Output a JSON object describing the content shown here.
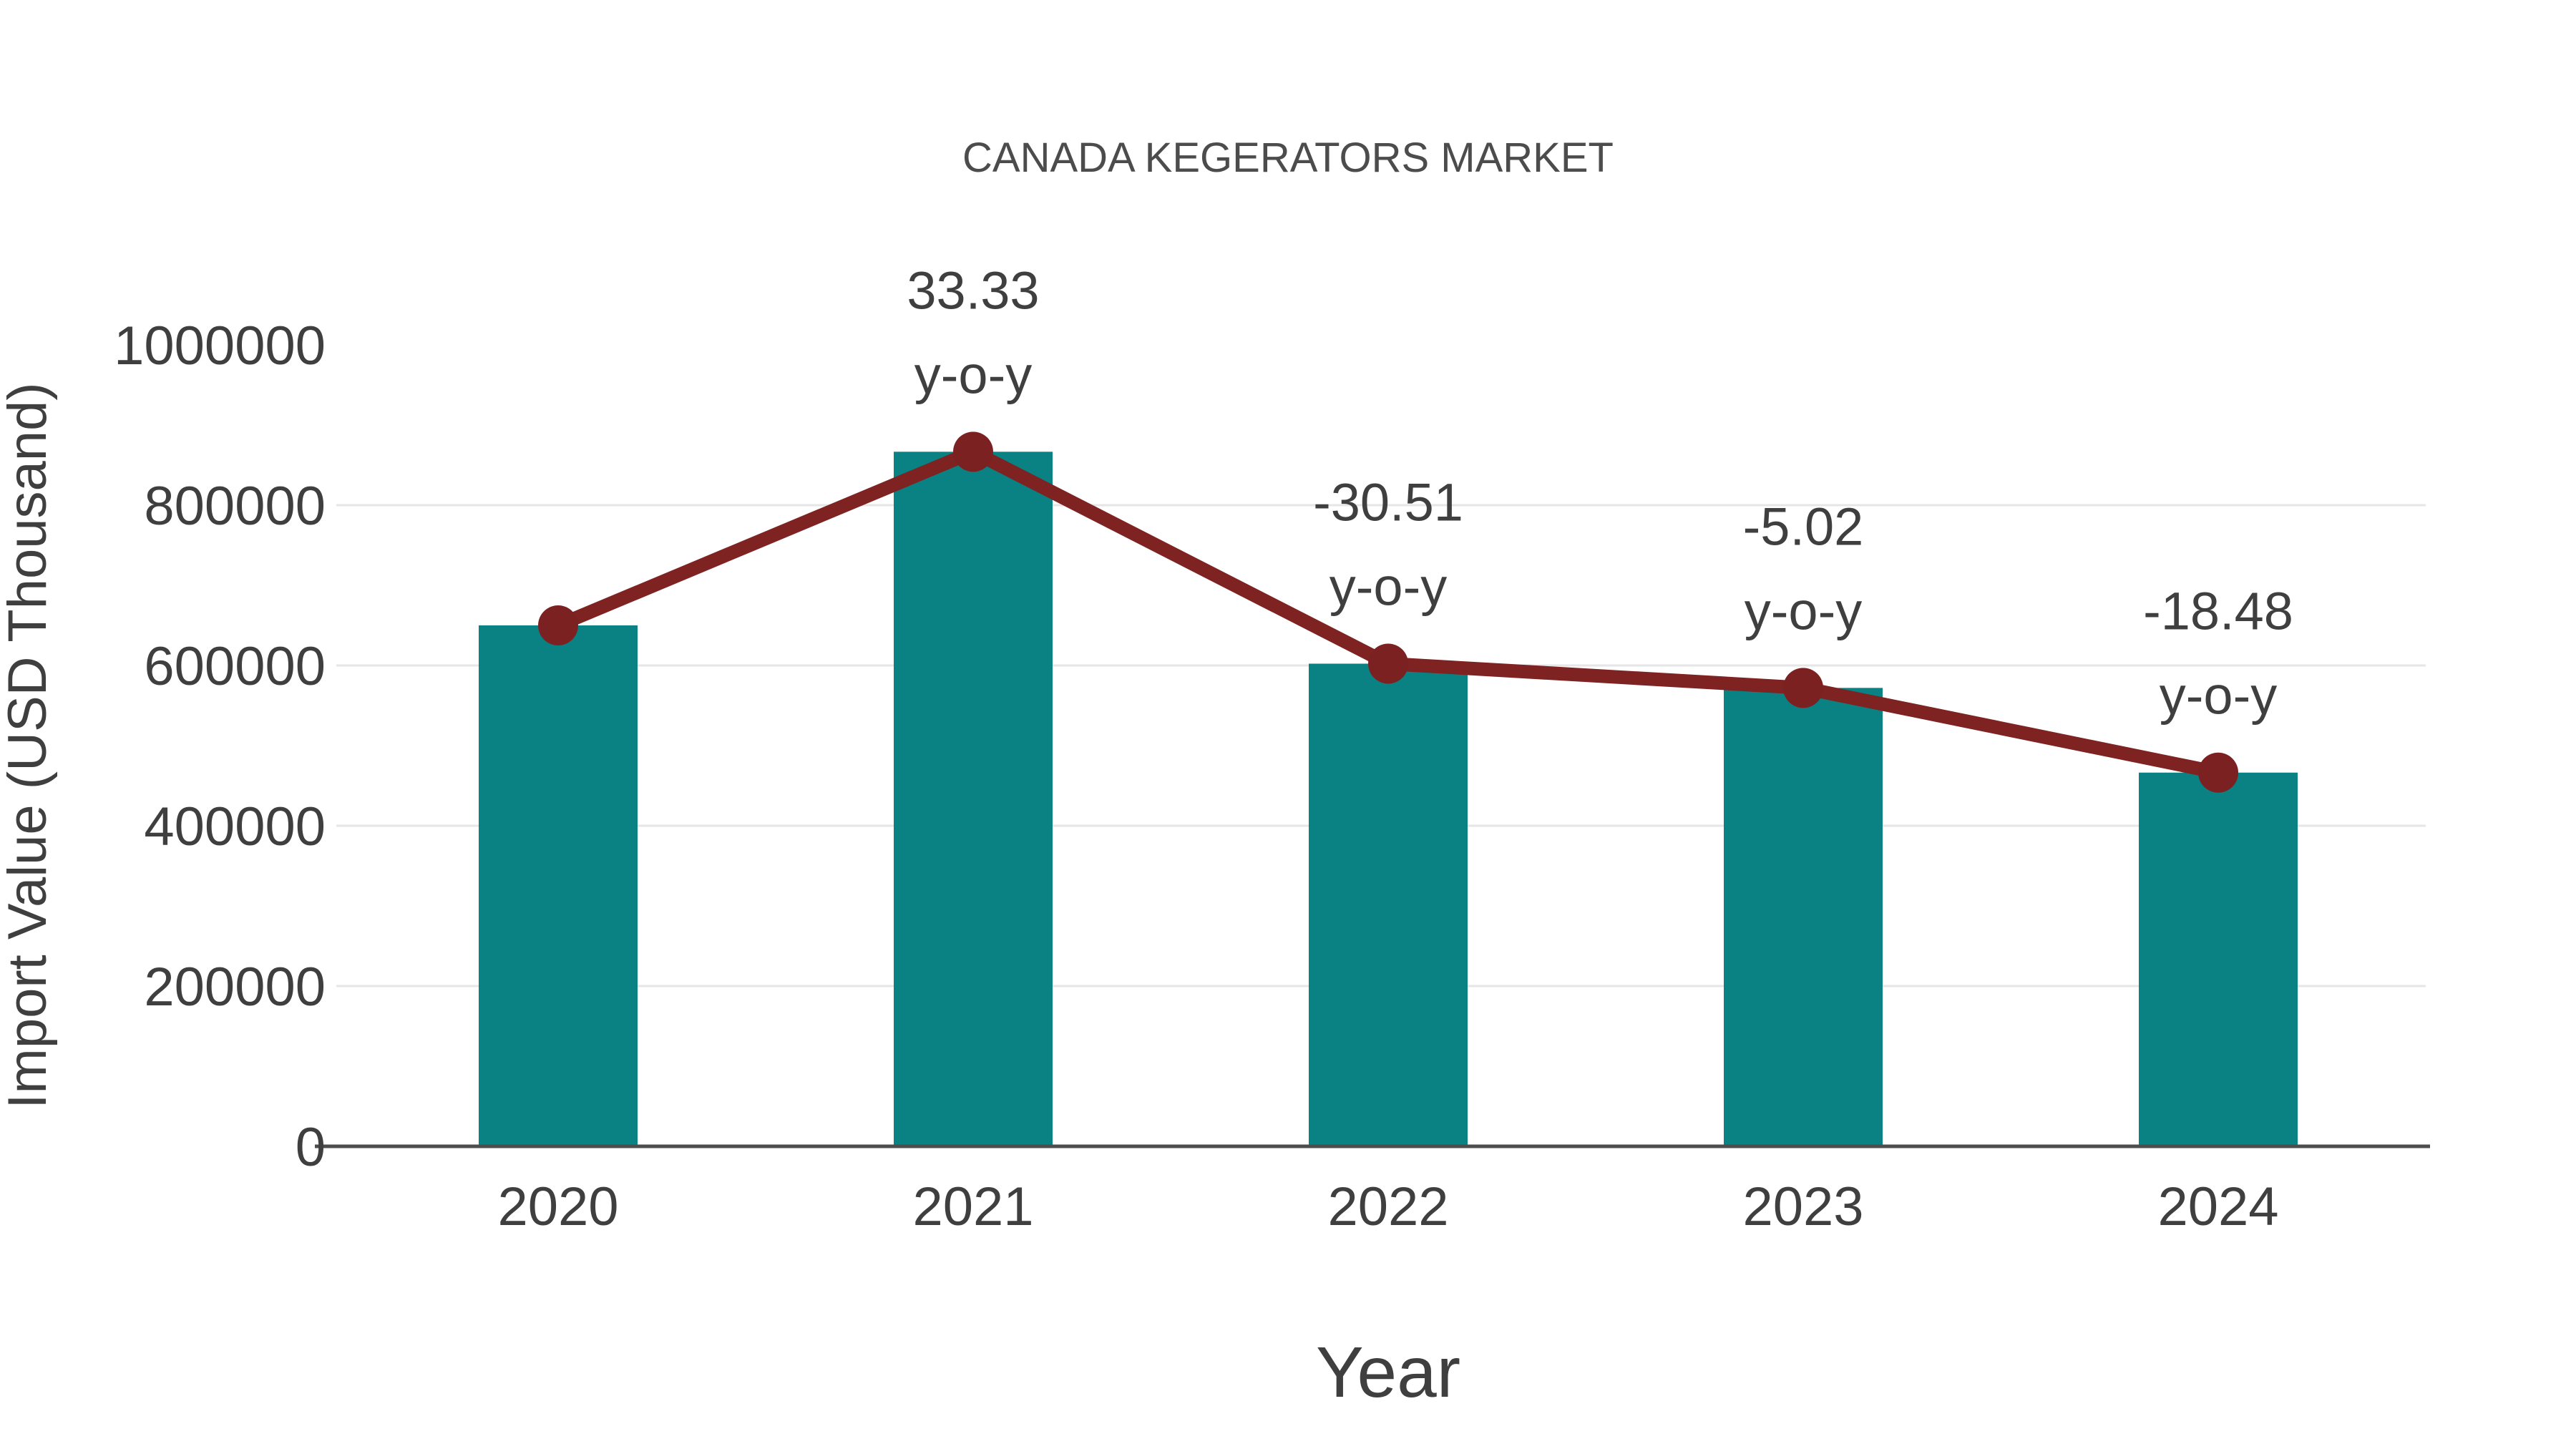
{
  "chart_data": {
    "type": "bar",
    "overlay": "line",
    "title": "CANADA KEGERATORS MARKET",
    "xlabel": "Year",
    "ylabel": "Import Value (USD Thousand)",
    "categories": [
      "2020",
      "2021",
      "2022",
      "2023",
      "2024"
    ],
    "series": [
      {
        "name": "Import Value (USD Thousand)",
        "type": "bar",
        "values": [
          650000,
          866667,
          602247,
          572014,
          466306
        ]
      },
      {
        "name": "y-o-y trend",
        "type": "line",
        "values": [
          650000,
          866667,
          602247,
          572014,
          466306
        ],
        "annotations": [
          {
            "category": "2021",
            "line1": "33.33",
            "line2": "y-o-y"
          },
          {
            "category": "2022",
            "line1": "-30.51",
            "line2": "y-o-y"
          },
          {
            "category": "2023",
            "line1": "-5.02",
            "line2": "y-o-y"
          },
          {
            "category": "2024",
            "line1": "-18.48",
            "line2": "y-o-y"
          }
        ]
      }
    ],
    "ylim": [
      0,
      1000000
    ],
    "yticks": [
      0,
      200000,
      400000,
      600000,
      800000,
      1000000
    ],
    "grid": "horizontal",
    "legend": "none",
    "colors": {
      "bar": "#0A8183",
      "line": "#7E2222",
      "marker": "#7C2122",
      "grid": "#E6E6E6",
      "axis": "#4D4D4D",
      "tick_text": "#3F3F3F",
      "title_text": "#4C4C4C",
      "annotation_text": "#3F3F3F",
      "background": "#FFFFFF"
    }
  }
}
